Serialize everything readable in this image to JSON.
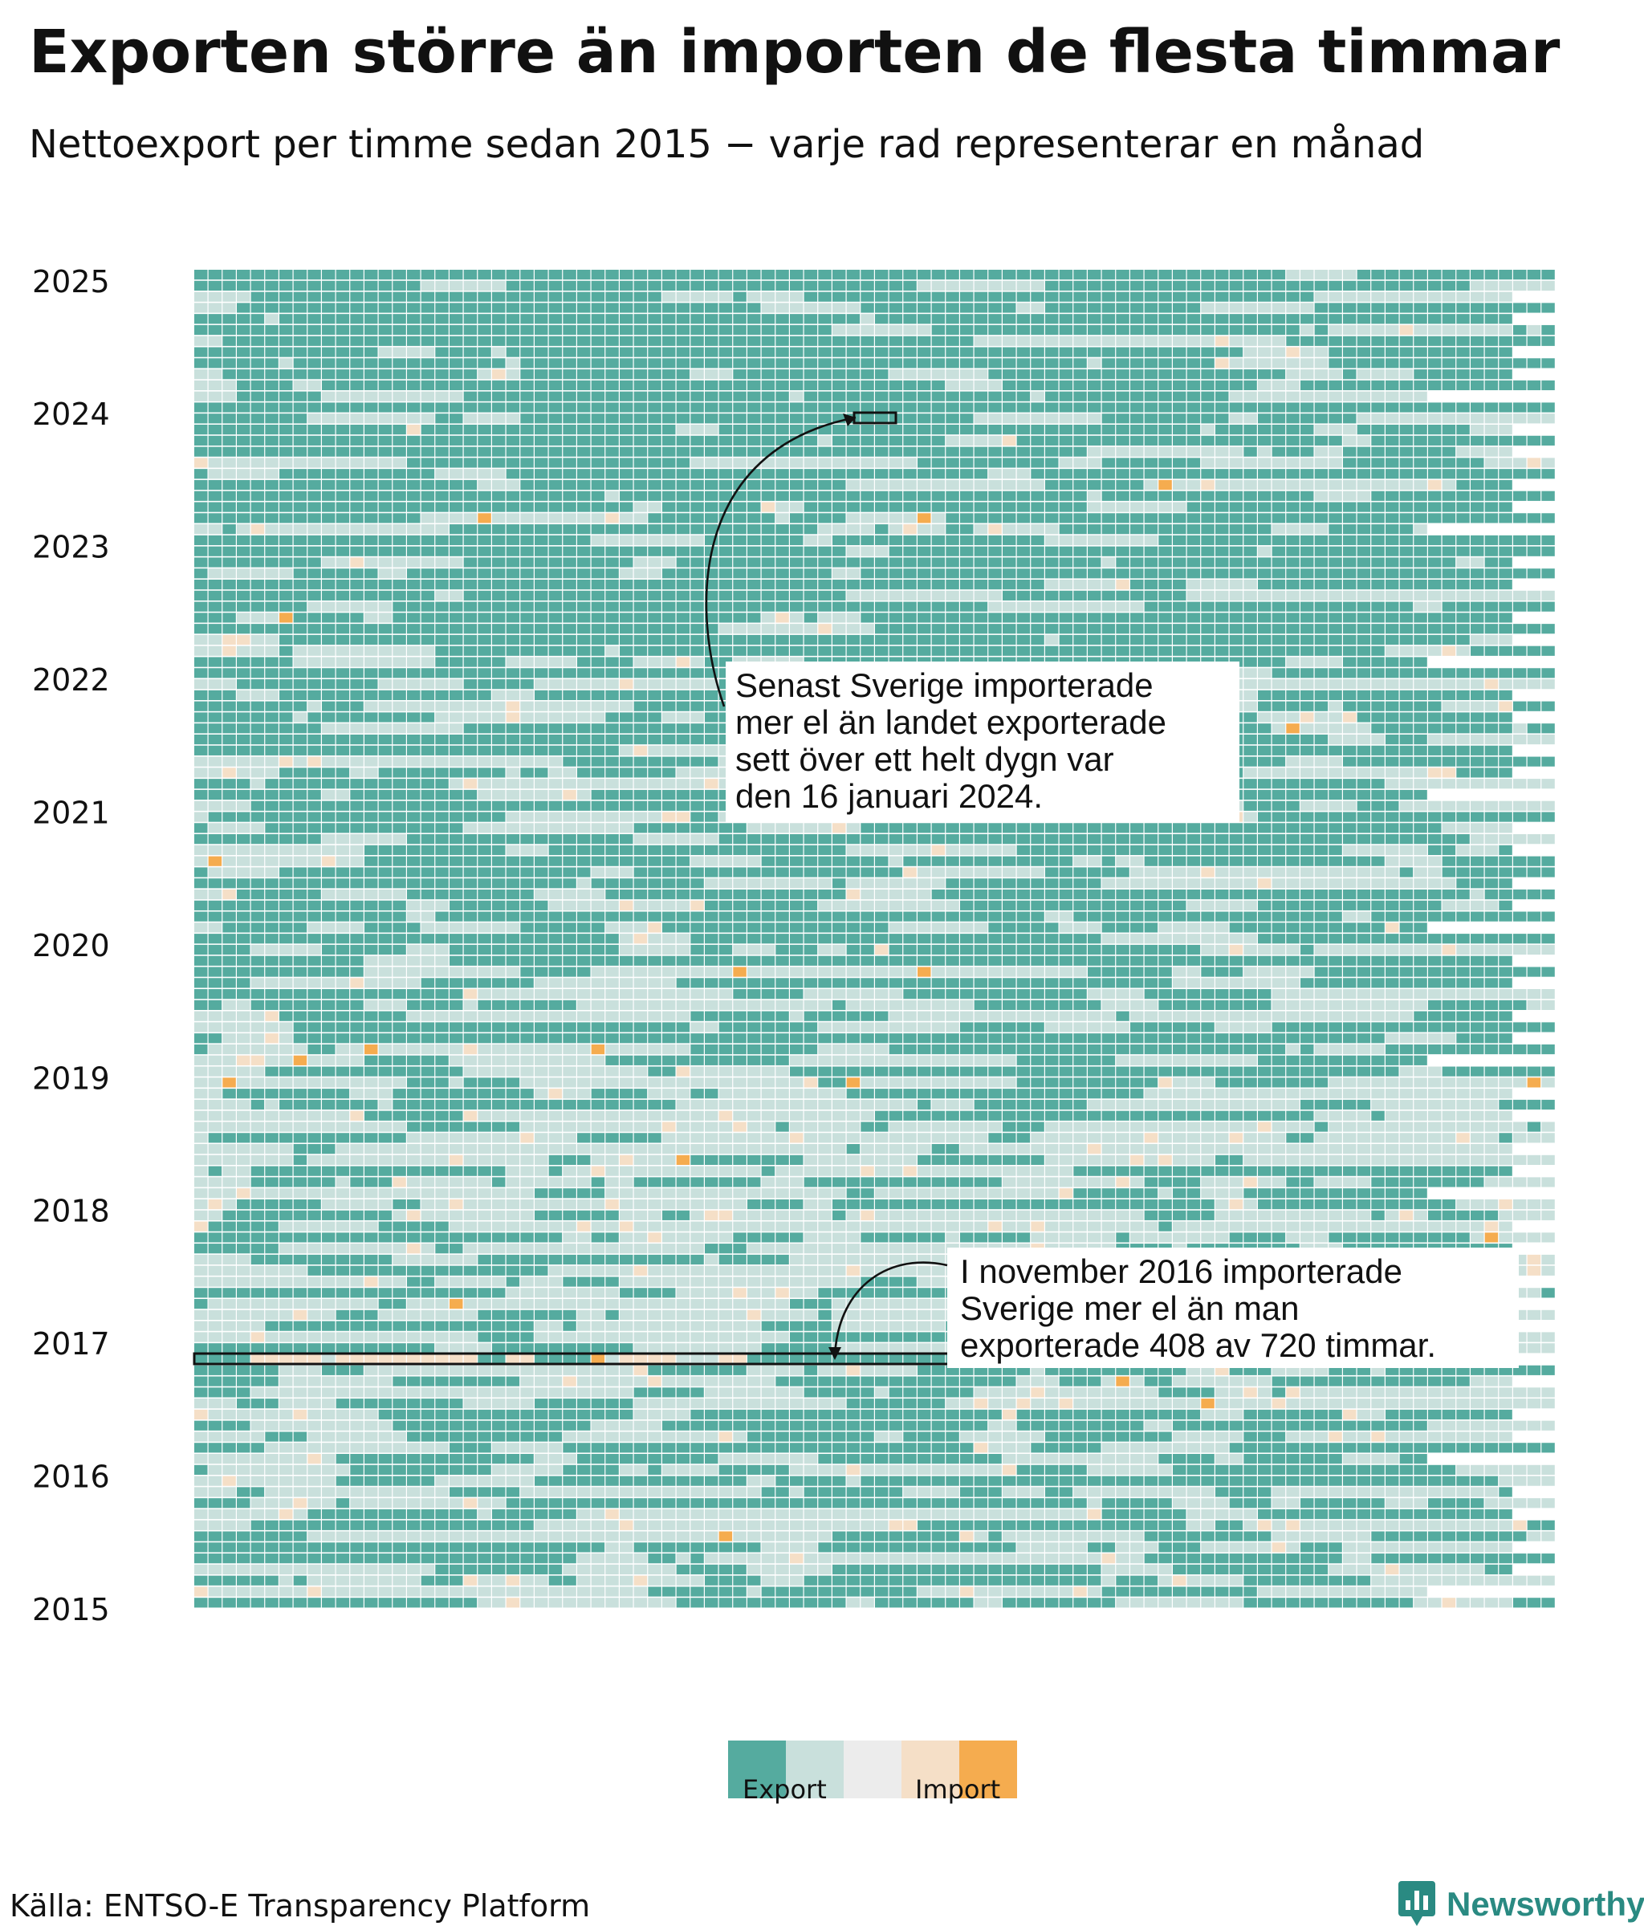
{
  "header": {
    "title": "Exporten större än importen de flesta timmar",
    "subtitle": "Nettoexport per timme sedan 2015 − varje rad representerar en månad"
  },
  "chart_data": {
    "type": "heatmap",
    "title": "Exporten större än importen de flesta timmar",
    "subtitle": "Nettoexport per timme sedan 2015 − varje rad representerar en månad",
    "y_tick_labels": [
      "2015",
      "2016",
      "2017",
      "2018",
      "2019",
      "2020",
      "2021",
      "2022",
      "2023",
      "2024",
      "2025"
    ],
    "rows": "one per month, Jan 2015 (bottom) to Jan 2025 (top)",
    "columns": "hours of the month",
    "color_scale": {
      "colors": [
        "#55ab9f",
        "#c9e0dc",
        "#ececec",
        "#f5dfc7",
        "#f5ac4f"
      ],
      "labels": [
        "Export",
        "Import"
      ],
      "legend_position": "bottom"
    },
    "annotations": [
      {
        "text": "Senast Sverige importerade mer el än landet exporterade sett över ett helt dygn var den 16 januari 2024.",
        "lines": [
          "Senast Sverige importerade",
          "mer el än landet exporterade",
          "sett över ett helt dygn var",
          "den 16 januari 2024."
        ]
      },
      {
        "text": "I november 2016 importerade Sverige mer el än man exporterade 408 av 720 timmar.",
        "lines": [
          "I november 2016 importerade",
          "Sverige mer el än man",
          "exporterade 408 av 720 timmar."
        ]
      }
    ],
    "grid": false
  },
  "footer": {
    "source": "Källa: ENTSO-E Transparency Platform",
    "brand": "Newsworthy",
    "brand_icon": "bar-chart-pin-icon"
  }
}
